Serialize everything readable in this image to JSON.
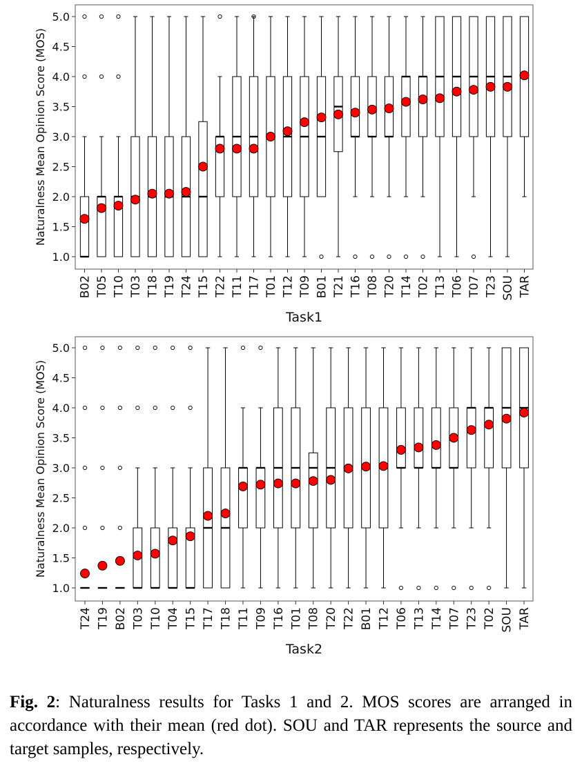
{
  "chart_data": [
    {
      "type": "box",
      "xlabel": "Task1",
      "ylabel": "Naturalness Mean Opinion Score (MOS)",
      "ylim": [
        1,
        5
      ],
      "yticks": [
        "1.0",
        "1.5",
        "2.0",
        "2.5",
        "3.0",
        "3.5",
        "4.0",
        "4.5",
        "5.0"
      ],
      "categories": [
        "B02",
        "T05",
        "T10",
        "T03",
        "T18",
        "T19",
        "T24",
        "T15",
        "T22",
        "T11",
        "T17",
        "T01",
        "T12",
        "T09",
        "B01",
        "T21",
        "T16",
        "T08",
        "T20",
        "T14",
        "T02",
        "T13",
        "T06",
        "T07",
        "T23",
        "SOU",
        "TAR"
      ],
      "means": [
        1.63,
        1.81,
        1.85,
        1.95,
        2.05,
        2.05,
        2.08,
        2.5,
        2.8,
        2.8,
        2.8,
        3.0,
        3.09,
        3.24,
        3.32,
        3.37,
        3.4,
        3.45,
        3.47,
        3.58,
        3.62,
        3.64,
        3.75,
        3.78,
        3.83,
        3.83,
        4.02
      ],
      "medians": [
        1,
        2,
        2,
        2,
        2,
        2,
        2,
        2,
        3,
        3,
        3,
        3,
        3,
        3,
        3,
        3.5,
        3,
        3,
        3,
        4,
        4,
        4,
        4,
        4,
        4,
        4,
        4
      ],
      "q1": [
        1,
        1,
        1,
        1,
        1,
        1,
        1,
        1,
        2,
        2,
        2,
        2,
        2,
        2,
        2,
        2.75,
        3,
        3,
        3,
        3,
        3,
        3,
        3,
        3,
        3,
        3,
        3
      ],
      "q3": [
        2,
        2,
        2,
        3,
        3,
        3,
        3,
        3.25,
        3,
        4,
        4,
        4,
        4,
        4,
        4,
        4,
        4,
        4,
        4,
        4,
        4,
        5,
        5,
        5,
        5,
        5,
        5
      ],
      "whisker_low": [
        1,
        1,
        1,
        1,
        1,
        1,
        1,
        1,
        1,
        1,
        1,
        1,
        1,
        1,
        2,
        1,
        2,
        2,
        2,
        2,
        2,
        1,
        1,
        2,
        1,
        1,
        2
      ],
      "whisker_high": [
        3,
        3,
        3,
        5,
        5,
        5,
        5,
        5,
        4,
        5,
        5,
        5,
        5,
        5,
        5,
        5,
        5,
        5,
        5,
        5,
        5,
        5,
        5,
        5,
        5,
        5,
        5
      ],
      "outliers": [
        [
          4,
          5
        ],
        [
          4,
          5
        ],
        [
          4,
          5
        ],
        [],
        [],
        [],
        [],
        [],
        [
          5
        ],
        [],
        [
          5
        ],
        [],
        [],
        [],
        [
          1
        ],
        [],
        [
          1
        ],
        [
          1
        ],
        [
          1
        ],
        [
          1
        ],
        [
          1
        ],
        [],
        [],
        [
          1
        ],
        [],
        [],
        []
      ]
    },
    {
      "type": "box",
      "xlabel": "Task2",
      "ylabel": "Naturalness Mean Opinion Score (MOS)",
      "ylim": [
        1,
        5
      ],
      "yticks": [
        "1.0",
        "1.5",
        "2.0",
        "2.5",
        "3.0",
        "3.5",
        "4.0",
        "4.5",
        "5.0"
      ],
      "categories": [
        "T24",
        "T19",
        "B02",
        "T03",
        "T10",
        "T04",
        "T15",
        "T17",
        "T18",
        "T11",
        "T09",
        "T16",
        "T01",
        "T08",
        "T20",
        "T22",
        "B01",
        "T12",
        "T06",
        "T13",
        "T14",
        "T07",
        "T23",
        "T02",
        "SOU",
        "TAR"
      ],
      "means": [
        1.24,
        1.37,
        1.45,
        1.54,
        1.57,
        1.79,
        1.86,
        2.2,
        2.24,
        2.69,
        2.72,
        2.74,
        2.74,
        2.78,
        2.8,
        2.99,
        3.02,
        3.03,
        3.3,
        3.34,
        3.38,
        3.5,
        3.63,
        3.72,
        3.82,
        3.92
      ],
      "medians": [
        1,
        1,
        1,
        1,
        1,
        1,
        1,
        2,
        2,
        3,
        3,
        3,
        3,
        3,
        3,
        3,
        3,
        3,
        3,
        3,
        3,
        3,
        4,
        4,
        4,
        4
      ],
      "q1": [
        1,
        1,
        1,
        1,
        1,
        1,
        1,
        1,
        1,
        2,
        2,
        2,
        2,
        2,
        2,
        2,
        2,
        2,
        3,
        3,
        3,
        3,
        3,
        3,
        3,
        3
      ],
      "q3": [
        1,
        1,
        1,
        2,
        2,
        2,
        2,
        3,
        3,
        3,
        3,
        4,
        4,
        3.25,
        4,
        4,
        4,
        4,
        4,
        4,
        4,
        4,
        4,
        4,
        5,
        5
      ],
      "whisker_low": [
        1,
        1,
        1,
        1,
        1,
        1,
        1,
        1,
        1,
        1,
        1,
        1,
        1,
        1,
        1,
        1,
        1,
        1,
        2,
        2,
        2,
        2,
        2,
        2,
        1,
        1
      ],
      "whisker_high": [
        1,
        1,
        1,
        3,
        3,
        3,
        3,
        5,
        5,
        4,
        4,
        5,
        5,
        5,
        5,
        5,
        5,
        5,
        5,
        5,
        5,
        5,
        5,
        5,
        5,
        5
      ],
      "outliers": [
        [
          2,
          3,
          4,
          5
        ],
        [
          2,
          3,
          4,
          5
        ],
        [
          2,
          3,
          4,
          5
        ],
        [
          4,
          5
        ],
        [
          4,
          5
        ],
        [
          4,
          5
        ],
        [
          4,
          5
        ],
        [],
        [],
        [
          5
        ],
        [
          5
        ],
        [],
        [],
        [],
        [],
        [],
        [],
        [],
        [
          1
        ],
        [
          1
        ],
        [
          1
        ],
        [
          1
        ],
        [
          1
        ],
        [
          1
        ],
        [],
        []
      ]
    }
  ],
  "caption": {
    "label": "Fig. 2",
    "text": ": Naturalness results for Tasks 1 and 2.  MOS scores are arranged in accordance with their mean (red dot). SOU and TAR represents the source and target samples, respectively."
  },
  "colors": {
    "mean_dot": "#ff0000",
    "box": "#000000"
  }
}
